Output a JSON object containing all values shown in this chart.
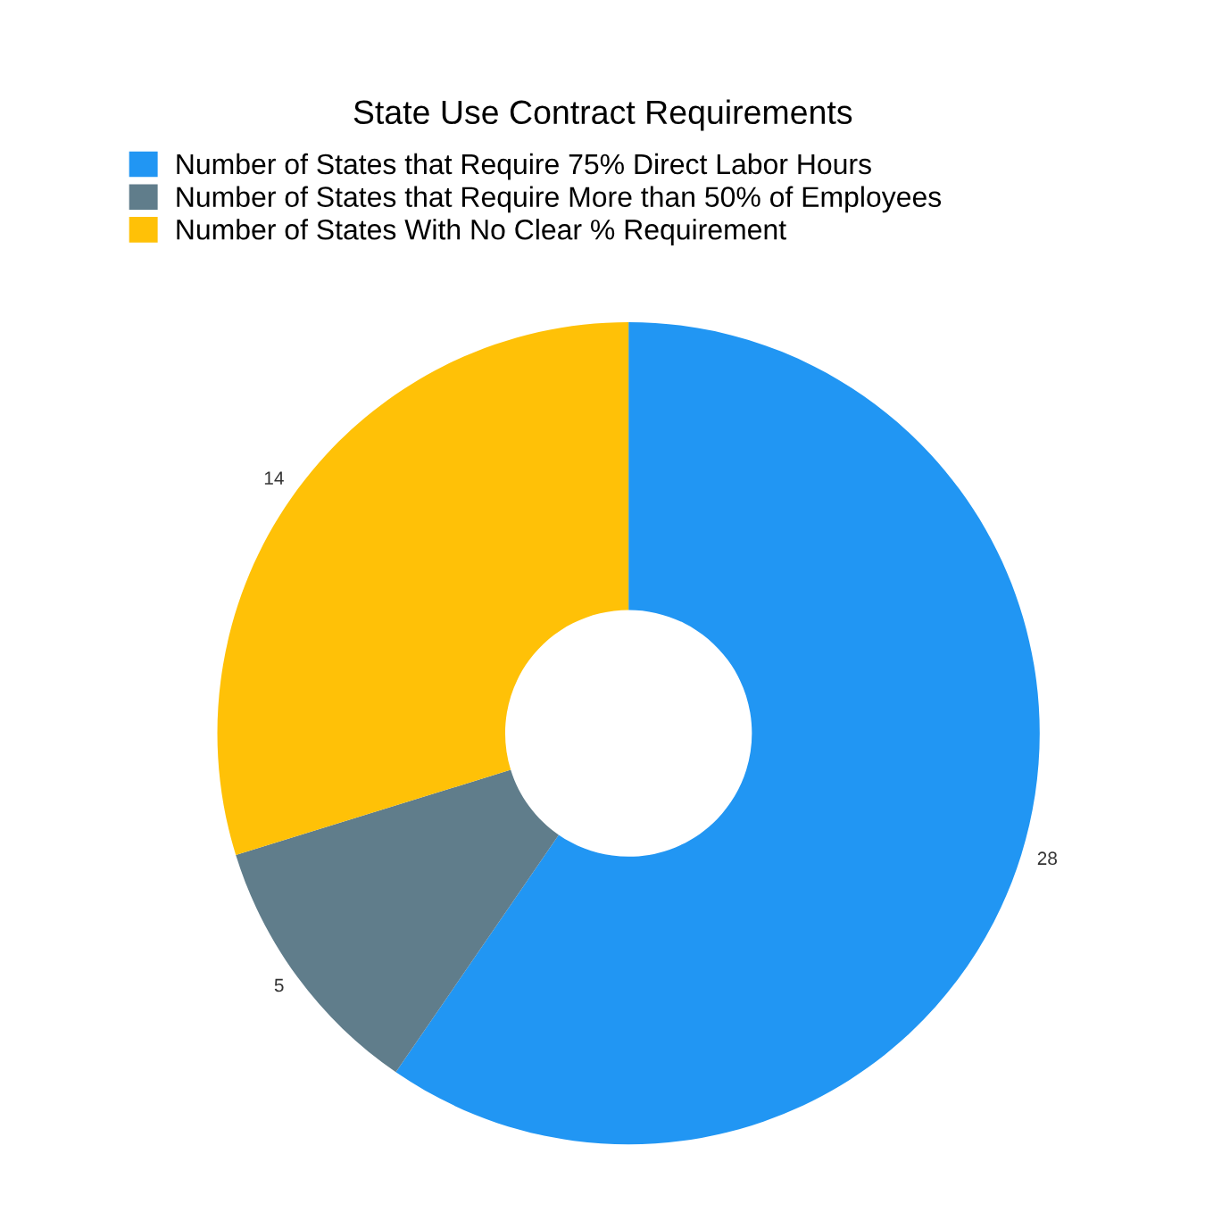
{
  "chart_data": {
    "type": "donut",
    "title": "State Use Contract Requirements",
    "categories": [
      "Number of States that Require 75% Direct Labor Hours",
      "Number of States that Require More than 50% of Employees",
      "Number of States With No Clear % Requirement"
    ],
    "values": [
      28,
      5,
      14
    ],
    "colors": [
      "#2196f3",
      "#607d8b",
      "#ffc107"
    ],
    "data_labels": true,
    "legend": "top"
  }
}
